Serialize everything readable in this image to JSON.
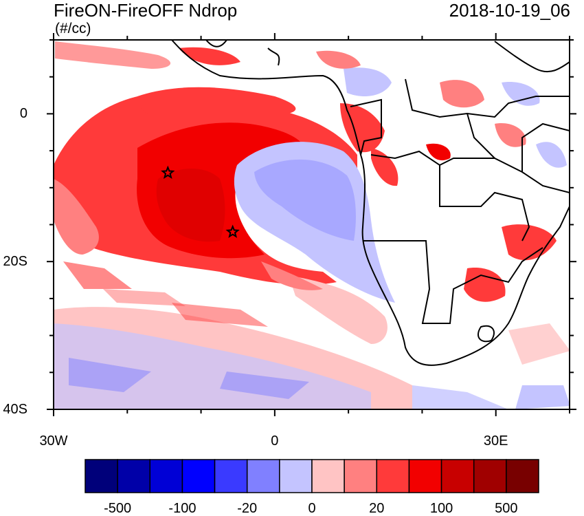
{
  "title": "FireON-FireOFF Ndrop",
  "units": "(#/cc)",
  "datetime": "2018-10-19_06",
  "map": {
    "lon_range": [
      -30,
      40
    ],
    "lat_range": [
      -40,
      10
    ],
    "y_tick_labels": [
      {
        "lat": 0,
        "label": "0"
      },
      {
        "lat": -20,
        "label": "20S"
      },
      {
        "lat": -40,
        "label": "40S"
      }
    ],
    "x_tick_labels": [
      {
        "lon": -30,
        "label": "30W"
      },
      {
        "lon": 0,
        "label": "0"
      },
      {
        "lon": 30,
        "label": "30E"
      }
    ],
    "markers": [
      {
        "type": "star",
        "lon": -14.5,
        "lat": -8
      },
      {
        "type": "star",
        "lon": -5.7,
        "lat": -16
      }
    ]
  },
  "colorbar": {
    "colors": [
      "#00007a",
      "#0000a8",
      "#0000d6",
      "#0000ff",
      "#3a3aff",
      "#8080ff",
      "#c4c4ff",
      "#ffc4c4",
      "#ff8080",
      "#ff3a3a",
      "#f20000",
      "#c80000",
      "#a00000",
      "#780000"
    ],
    "labels": [
      {
        "text": "-500",
        "index": 1
      },
      {
        "text": "-100",
        "index": 3
      },
      {
        "text": "-20",
        "index": 5
      },
      {
        "text": "0",
        "index": 7
      },
      {
        "text": "20",
        "index": 9
      },
      {
        "text": "100",
        "index": 11
      },
      {
        "text": "500",
        "index": 13
      }
    ]
  }
}
